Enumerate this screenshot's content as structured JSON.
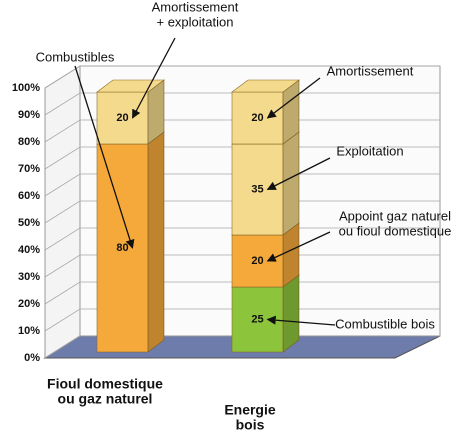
{
  "chart_data": {
    "type": "bar3d_stacked",
    "categories": [
      "Fioul domestique\nou gaz naturel",
      "Energie\nbois"
    ],
    "series": [
      {
        "name": "Combustibles",
        "color": "#f5a93a",
        "values": [
          80,
          null
        ]
      },
      {
        "name": "Amortissement\n+ exploitation",
        "color": "#f4da8c",
        "values": [
          20,
          null
        ]
      },
      {
        "name": "Combustible bois",
        "color": "#8cc43c",
        "values": [
          null,
          25
        ]
      },
      {
        "name": "Appoint gaz naturel\nou fioul  domestique",
        "color": "#f5a93a",
        "values": [
          null,
          20
        ]
      },
      {
        "name": "Exploitation",
        "color": "#f4da8c",
        "values": [
          null,
          35
        ]
      },
      {
        "name": "Amortissement",
        "color": "#f4da8c",
        "values": [
          null,
          20
        ]
      }
    ],
    "ylim": [
      0,
      100
    ],
    "yticks": [
      {
        "value": 0,
        "label": "0%"
      },
      {
        "value": 10,
        "label": "10%"
      },
      {
        "value": 20,
        "label": "20%"
      },
      {
        "value": 30,
        "label": "30%"
      },
      {
        "value": 40,
        "label": "40%"
      },
      {
        "value": 50,
        "label": "50%"
      },
      {
        "value": 60,
        "label": "60%"
      },
      {
        "value": 70,
        "label": "70%"
      },
      {
        "value": 80,
        "label": "80%"
      },
      {
        "value": 90,
        "label": "90%"
      },
      {
        "value": 100,
        "label": "100%"
      }
    ],
    "grid": true
  }
}
